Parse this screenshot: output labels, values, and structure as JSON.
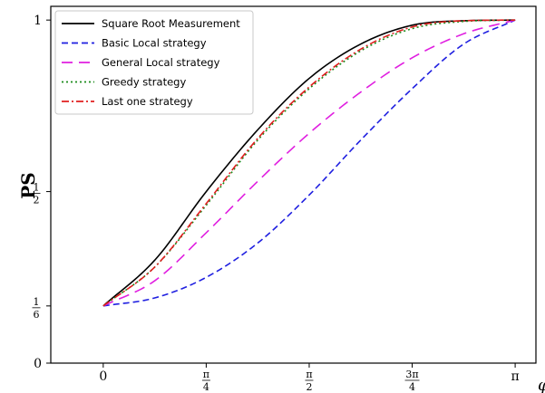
{
  "chart_data": {
    "type": "line",
    "xlabel": "φ",
    "ylabel": "PS",
    "xlim": [
      -0.4,
      3.3
    ],
    "ylim": [
      0,
      1.04
    ],
    "x_ticks": [
      {
        "value": 0,
        "label": "0"
      },
      {
        "value": 0.7854,
        "num": "π",
        "den": "4"
      },
      {
        "value": 1.5708,
        "num": "π",
        "den": "2"
      },
      {
        "value": 2.3562,
        "num": "3π",
        "den": "4"
      },
      {
        "value": 3.1416,
        "label": "π"
      }
    ],
    "y_ticks": [
      {
        "value": 0,
        "label": "0"
      },
      {
        "value": 0.1667,
        "num": "1",
        "den": "6"
      },
      {
        "value": 0.5,
        "num": "1",
        "den": "2"
      },
      {
        "value": 1,
        "label": "1"
      }
    ],
    "grid": false,
    "legend_position": "top-left",
    "series": [
      {
        "name": "Square Root Measurement",
        "color": "#000000",
        "dash": "solid",
        "x": [
          0,
          0.3927,
          0.7854,
          1.1781,
          1.5708,
          1.9635,
          2.3562,
          2.7489,
          3.1416
        ],
        "values": [
          0.1667,
          0.3,
          0.5,
          0.68,
          0.83,
          0.93,
          0.985,
          0.998,
          1.0
        ]
      },
      {
        "name": "Basic Local strategy",
        "color": "#1f1fe0",
        "dash": "dashed",
        "x": [
          0,
          0.3927,
          0.7854,
          1.1781,
          1.5708,
          1.9635,
          2.3562,
          2.7489,
          3.1416
        ],
        "values": [
          0.1667,
          0.19,
          0.25,
          0.35,
          0.49,
          0.65,
          0.8,
          0.93,
          1.0
        ]
      },
      {
        "name": "General Local strategy",
        "color": "#e01fe0",
        "dash": "long-dashed",
        "x": [
          0,
          0.3927,
          0.7854,
          1.1781,
          1.5708,
          1.9635,
          2.3562,
          2.7489,
          3.1416
        ],
        "values": [
          0.1667,
          0.24,
          0.38,
          0.53,
          0.67,
          0.79,
          0.89,
          0.96,
          1.0
        ]
      },
      {
        "name": "Greedy strategy",
        "color": "#1a8a1a",
        "dash": "dotted",
        "x": [
          0,
          0.3927,
          0.7854,
          1.1781,
          1.5708,
          1.9635,
          2.3562,
          2.7489,
          3.1416
        ],
        "values": [
          0.1667,
          0.28,
          0.46,
          0.65,
          0.8,
          0.91,
          0.975,
          0.996,
          1.0
        ]
      },
      {
        "name": "Last one strategy",
        "color": "#e01f1f",
        "dash": "dash-dot",
        "x": [
          0,
          0.3927,
          0.7854,
          1.1781,
          1.5708,
          1.9635,
          2.3562,
          2.7489,
          3.1416
        ],
        "values": [
          0.1667,
          0.28,
          0.465,
          0.655,
          0.805,
          0.915,
          0.98,
          0.998,
          1.0
        ]
      }
    ]
  }
}
